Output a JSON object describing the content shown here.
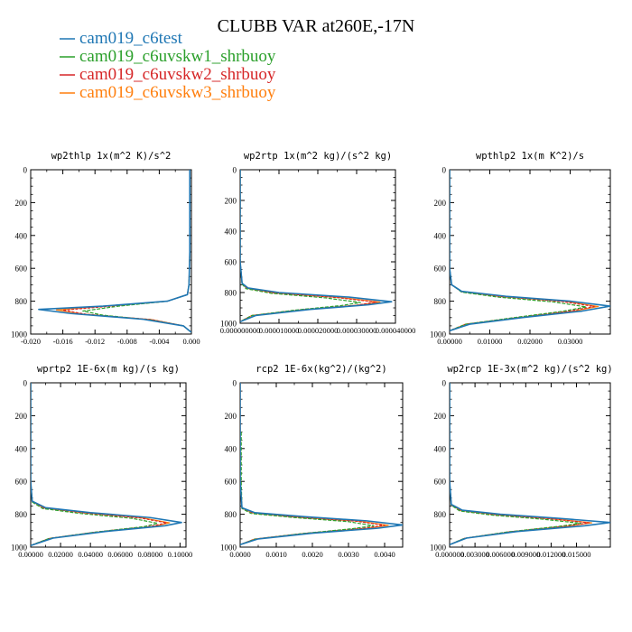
{
  "figure": {
    "title": "CLUBB VAR at260E,-17N"
  },
  "legend": [
    {
      "label": "cam019_c6test",
      "color": "#1f77b4"
    },
    {
      "label": "cam019_c6uvskw1_shrbuoy",
      "color": "#2ca02c"
    },
    {
      "label": "cam019_c6uvskw2_shrbuoy",
      "color": "#d62728"
    },
    {
      "label": "cam019_c6uvskw3_shrbuoy",
      "color": "#ff7f0e"
    }
  ],
  "chart_data": [
    {
      "type": "line",
      "title": "wp2thlp   1x(m^2 K)/s^2",
      "xlim": [
        -0.02,
        0.0
      ],
      "ylim": [
        1000,
        0
      ],
      "y_axis_inverted": true,
      "xticks": [
        "-0.020",
        "-0.016",
        "-0.012",
        "-0.008",
        "-0.004",
        "0.000"
      ],
      "yticks": [
        "0",
        "200",
        "400",
        "600",
        "800",
        "1000"
      ],
      "series": [
        {
          "name": "cam019_c6test",
          "x": [
            -0.0002,
            -0.0002,
            -0.0003,
            -0.0005,
            -0.003,
            -0.011,
            -0.019,
            -0.015,
            -0.006,
            -0.001,
            0.0
          ],
          "y": [
            0,
            500,
            700,
            760,
            800,
            830,
            850,
            875,
            910,
            950,
            990
          ]
        },
        {
          "name": "cam019_c6uvskw1_shrbuoy",
          "x": [
            -0.0002,
            -0.0002,
            -0.0003,
            -0.0005,
            -0.003,
            -0.009,
            -0.0135,
            -0.011,
            -0.005,
            -0.001,
            0.0
          ],
          "y": [
            0,
            500,
            700,
            760,
            800,
            830,
            860,
            885,
            915,
            950,
            990
          ]
        },
        {
          "name": "cam019_c6uvskw2_shrbuoy",
          "x": [
            -0.0002,
            -0.0002,
            -0.0003,
            -0.0005,
            -0.003,
            -0.01,
            -0.016,
            -0.013,
            -0.005,
            -0.001,
            0.0
          ],
          "y": [
            0,
            500,
            700,
            760,
            800,
            830,
            855,
            880,
            912,
            950,
            990
          ]
        },
        {
          "name": "cam019_c6uvskw3_shrbuoy",
          "x": [
            -0.0002,
            -0.0002,
            -0.0003,
            -0.0005,
            -0.003,
            -0.0105,
            -0.0168,
            -0.0135,
            -0.005,
            -0.001,
            0.0
          ],
          "y": [
            0,
            500,
            700,
            760,
            800,
            830,
            853,
            878,
            912,
            950,
            990
          ]
        }
      ]
    },
    {
      "type": "line",
      "title": "wp2rtp   1x(m^2 kg)/(s^2 kg)",
      "xlim": [
        0.0,
        4e-05
      ],
      "ylim": [
        1000,
        0
      ],
      "y_axis_inverted": true,
      "xticks": [
        "0.000000000",
        "0.000010000",
        "0.000020000",
        "0.000030000",
        "0.000040000"
      ],
      "yticks": [
        "0",
        "200",
        "400",
        "600",
        "800",
        "1000"
      ],
      "series": [
        {
          "name": "cam019_c6test",
          "x": [
            0.0,
            0.0,
            5e-07,
            2e-06,
            1e-05,
            2.8e-05,
            3.9e-05,
            3.3e-05,
            1.8e-05,
            4e-06,
            0.0
          ],
          "y": [
            0,
            600,
            740,
            770,
            800,
            830,
            860,
            880,
            910,
            950,
            990
          ]
        },
        {
          "name": "cam019_c6uvskw1_shrbuoy",
          "x": [
            0.0,
            0.0,
            5e-07,
            1.5e-06,
            8e-06,
            2.2e-05,
            3.1e-05,
            2.6e-05,
            1.4e-05,
            3e-06,
            0.0
          ],
          "y": [
            0,
            600,
            745,
            775,
            805,
            835,
            865,
            885,
            915,
            950,
            990
          ]
        },
        {
          "name": "cam019_c6uvskw2_shrbuoy",
          "x": [
            0.0,
            0.0,
            5e-07,
            1.8e-06,
            9e-06,
            2.5e-05,
            3.5e-05,
            3e-05,
            1.6e-05,
            3e-06,
            0.0
          ],
          "y": [
            0,
            600,
            742,
            772,
            803,
            833,
            862,
            883,
            912,
            950,
            990
          ]
        },
        {
          "name": "cam019_c6uvskw3_shrbuoy",
          "x": [
            0.0,
            0.0,
            5e-07,
            1.8e-06,
            9e-06,
            2.6e-05,
            3.6e-05,
            3e-05,
            1.6e-05,
            3e-06,
            0.0
          ],
          "y": [
            0,
            600,
            742,
            772,
            803,
            833,
            862,
            883,
            912,
            950,
            990
          ]
        }
      ]
    },
    {
      "type": "line",
      "title": "wpthlp2   1x(m K^2)/s",
      "xlim": [
        0.0,
        0.04
      ],
      "ylim": [
        1000,
        0
      ],
      "y_axis_inverted": true,
      "xticks": [
        "0.00000",
        "0.01000",
        "0.02000",
        "0.03000"
      ],
      "yticks": [
        "0",
        "200",
        "400",
        "600",
        "800",
        "1000"
      ],
      "series": [
        {
          "name": "cam019_c6test",
          "x": [
            0.0,
            0.0,
            0.0005,
            0.003,
            0.014,
            0.03,
            0.04,
            0.033,
            0.018,
            0.005,
            0.0
          ],
          "y": [
            0,
            600,
            700,
            740,
            770,
            800,
            830,
            860,
            900,
            940,
            980
          ]
        },
        {
          "name": "cam019_c6uvskw1_shrbuoy",
          "x": [
            0.0,
            0.0,
            0.0005,
            0.003,
            0.012,
            0.026,
            0.034,
            0.028,
            0.016,
            0.004,
            0.0
          ],
          "y": [
            0,
            600,
            700,
            745,
            775,
            805,
            835,
            862,
            900,
            940,
            980
          ]
        },
        {
          "name": "cam019_c6uvskw2_shrbuoy",
          "x": [
            0.0,
            0.0,
            0.0005,
            0.003,
            0.013,
            0.028,
            0.036,
            0.03,
            0.017,
            0.004,
            0.0
          ],
          "y": [
            0,
            600,
            700,
            742,
            772,
            802,
            832,
            860,
            900,
            940,
            980
          ]
        },
        {
          "name": "cam019_c6uvskw3_shrbuoy",
          "x": [
            0.0,
            0.0,
            0.0005,
            0.003,
            0.013,
            0.029,
            0.037,
            0.031,
            0.017,
            0.004,
            0.0
          ],
          "y": [
            0,
            600,
            700,
            742,
            772,
            802,
            832,
            860,
            900,
            940,
            980
          ]
        }
      ]
    },
    {
      "type": "line",
      "title": "wprtp2   1E-6x(m kg)/(s kg)",
      "xlim": [
        0.0,
        0.104
      ],
      "ylim": [
        1000,
        0
      ],
      "y_axis_inverted": true,
      "xticks": [
        "0.00000",
        "0.02000",
        "0.04000",
        "0.06000",
        "0.08000",
        "0.10000"
      ],
      "yticks": [
        "0",
        "200",
        "400",
        "600",
        "800",
        "1000"
      ],
      "series": [
        {
          "name": "cam019_c6test",
          "x": [
            0.0,
            0.0,
            0.001,
            0.01,
            0.04,
            0.08,
            0.101,
            0.09,
            0.05,
            0.015,
            0.0
          ],
          "y": [
            0,
            600,
            720,
            760,
            790,
            820,
            850,
            870,
            905,
            945,
            990
          ]
        },
        {
          "name": "cam019_c6uvskw1_shrbuoy",
          "x": [
            0.0,
            0.0,
            0.001,
            0.008,
            0.033,
            0.068,
            0.085,
            0.076,
            0.042,
            0.012,
            0.0
          ],
          "y": [
            0,
            600,
            725,
            765,
            795,
            825,
            855,
            875,
            910,
            948,
            990
          ]
        },
        {
          "name": "cam019_c6uvskw2_shrbuoy",
          "x": [
            0.0,
            0.0,
            0.001,
            0.009,
            0.036,
            0.073,
            0.091,
            0.081,
            0.045,
            0.013,
            0.0
          ],
          "y": [
            0,
            600,
            722,
            762,
            792,
            822,
            852,
            873,
            907,
            946,
            990
          ]
        },
        {
          "name": "cam019_c6uvskw3_shrbuoy",
          "x": [
            0.0,
            0.0,
            0.001,
            0.009,
            0.037,
            0.075,
            0.093,
            0.083,
            0.046,
            0.013,
            0.0
          ],
          "y": [
            0,
            600,
            722,
            762,
            792,
            822,
            852,
            873,
            907,
            946,
            990
          ]
        }
      ]
    },
    {
      "type": "line",
      "title": "rcp2   1E-6x(kg^2)/(kg^2)",
      "xlim": [
        0.0,
        0.0045
      ],
      "ylim": [
        1000,
        0
      ],
      "y_axis_inverted": true,
      "xticks": [
        "0.0000",
        "0.0010",
        "0.0020",
        "0.0030",
        "0.0040"
      ],
      "yticks": [
        "0",
        "200",
        "400",
        "600",
        "800",
        "1000"
      ],
      "series": [
        {
          "name": "cam019_c6test",
          "x": [
            0.0,
            0.0,
            5e-05,
            0.0004,
            0.0018,
            0.0035,
            0.0045,
            0.0038,
            0.002,
            0.0005,
            0.0
          ],
          "y": [
            0,
            600,
            760,
            790,
            815,
            840,
            865,
            885,
            915,
            950,
            985
          ]
        },
        {
          "name": "cam019_c6uvskw1_shrbuoy",
          "x": [
            3e-05,
            3e-05,
            5e-05,
            0.0003,
            0.0015,
            0.003,
            0.0037,
            0.0031,
            0.0017,
            0.0004,
            0.0
          ],
          "y": [
            300,
            600,
            765,
            795,
            820,
            845,
            870,
            888,
            918,
            952,
            985
          ]
        },
        {
          "name": "cam019_c6uvskw2_shrbuoy",
          "x": [
            0.0,
            0.0,
            5e-05,
            0.00035,
            0.0016,
            0.0032,
            0.004,
            0.0034,
            0.0018,
            0.0004,
            0.0
          ],
          "y": [
            0,
            600,
            762,
            792,
            818,
            842,
            867,
            886,
            916,
            951,
            985
          ]
        },
        {
          "name": "cam019_c6uvskw3_shrbuoy",
          "x": [
            0.0,
            0.0,
            5e-05,
            0.00035,
            0.0016,
            0.0033,
            0.0041,
            0.0035,
            0.0018,
            0.0004,
            0.0
          ],
          "y": [
            0,
            600,
            762,
            792,
            818,
            842,
            867,
            886,
            916,
            951,
            985
          ]
        }
      ]
    },
    {
      "type": "line",
      "title": "wp2rcp   1E-3x(m^2 kg)/(s^2 kg)",
      "xlim": [
        0.0,
        0.019
      ],
      "ylim": [
        1000,
        0
      ],
      "y_axis_inverted": true,
      "xticks": [
        "0.000000",
        "0.003000",
        "0.006000",
        "0.009000",
        "0.012000",
        "0.015000"
      ],
      "yticks": [
        "0",
        "200",
        "400",
        "600",
        "800",
        "1000"
      ],
      "series": [
        {
          "name": "cam019_c6test",
          "x": [
            0.0,
            0.0,
            0.0002,
            0.0015,
            0.006,
            0.013,
            0.019,
            0.016,
            0.008,
            0.002,
            0.0
          ],
          "y": [
            0,
            600,
            740,
            775,
            800,
            825,
            850,
            870,
            905,
            945,
            985
          ]
        },
        {
          "name": "cam019_c6uvskw1_shrbuoy",
          "x": [
            0.0,
            0.0,
            0.0002,
            0.0012,
            0.005,
            0.011,
            0.0155,
            0.013,
            0.0068,
            0.0017,
            0.0
          ],
          "y": [
            0,
            600,
            745,
            780,
            805,
            830,
            855,
            873,
            908,
            947,
            985
          ]
        },
        {
          "name": "cam019_c6uvskw2_shrbuoy",
          "x": [
            0.0,
            0.0,
            0.0002,
            0.0013,
            0.0053,
            0.0118,
            0.0165,
            0.014,
            0.0072,
            0.0018,
            0.0
          ],
          "y": [
            0,
            600,
            742,
            777,
            802,
            827,
            852,
            871,
            906,
            946,
            985
          ]
        },
        {
          "name": "cam019_c6uvskw3_shrbuoy",
          "x": [
            0.0,
            0.0,
            0.0002,
            0.0013,
            0.0054,
            0.012,
            0.0168,
            0.0142,
            0.0073,
            0.0018,
            0.0
          ],
          "y": [
            0,
            600,
            742,
            777,
            802,
            827,
            852,
            871,
            906,
            946,
            985
          ]
        }
      ]
    }
  ]
}
